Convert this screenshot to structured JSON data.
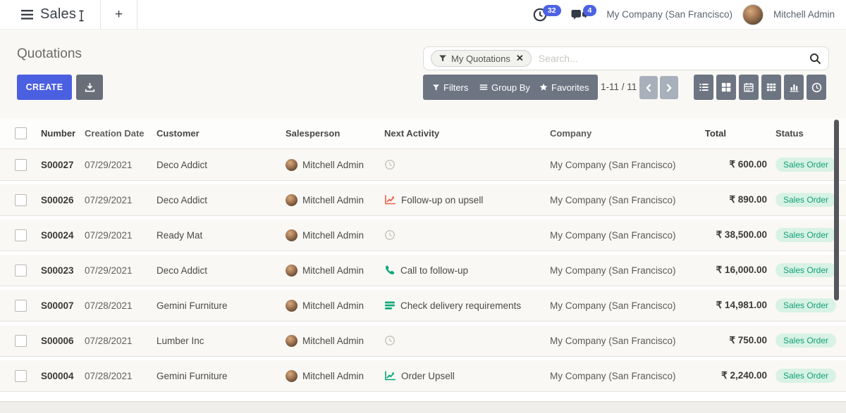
{
  "topbar": {
    "app_name": "Sales",
    "new_tab_label": "+",
    "activity_count": "32",
    "message_count": "4",
    "company": "My Company (San Francisco)",
    "user": "Mitchell Admin"
  },
  "controls": {
    "page_title": "Quotations",
    "create_label": "CREATE",
    "filter_chip": "My Quotations",
    "search_placeholder": "Search...",
    "filters_label": "Filters",
    "group_by_label": "Group By",
    "favorites_label": "Favorites",
    "pager": "1-11 / 11",
    "view_switcher": [
      "list",
      "kanban",
      "calendar",
      "pivot",
      "graph",
      "activity"
    ]
  },
  "table": {
    "columns": [
      "Number",
      "Creation Date",
      "Customer",
      "Salesperson",
      "Next Activity",
      "Company",
      "Total",
      "Status"
    ],
    "rows": [
      {
        "number": "S00027",
        "creation_date": "07/29/2021",
        "customer": "Deco Addict",
        "salesperson": "Mitchell Admin",
        "activity_icon": "clock-icon",
        "activity_label": "",
        "activity_color": "#c9c9c4",
        "company": "My Company (San Francisco)",
        "total": "₹ 600.00",
        "status": "Sales Order"
      },
      {
        "number": "S00026",
        "creation_date": "07/29/2021",
        "customer": "Deco Addict",
        "salesperson": "Mitchell Admin",
        "activity_icon": "chart-up-icon",
        "activity_label": "Follow-up on upsell",
        "activity_color": "#e8604a",
        "company": "My Company (San Francisco)",
        "total": "₹ 890.00",
        "status": "Sales Order"
      },
      {
        "number": "S00024",
        "creation_date": "07/29/2021",
        "customer": "Ready Mat",
        "salesperson": "Mitchell Admin",
        "activity_icon": "clock-icon",
        "activity_label": "",
        "activity_color": "#c9c9c4",
        "company": "My Company (San Francisco)",
        "total": "₹ 38,500.00",
        "status": "Sales Order"
      },
      {
        "number": "S00023",
        "creation_date": "07/29/2021",
        "customer": "Deco Addict",
        "salesperson": "Mitchell Admin",
        "activity_icon": "phone-icon",
        "activity_label": "Call to follow-up",
        "activity_color": "#00a878",
        "company": "My Company (San Francisco)",
        "total": "₹ 16,000.00",
        "status": "Sales Order"
      },
      {
        "number": "S00007",
        "creation_date": "07/28/2021",
        "customer": "Gemini Furniture",
        "salesperson": "Mitchell Admin",
        "activity_icon": "tasks-icon",
        "activity_label": "Check delivery requirements",
        "activity_color": "#00a878",
        "company": "My Company (San Francisco)",
        "total": "₹ 14,981.00",
        "status": "Sales Order"
      },
      {
        "number": "S00006",
        "creation_date": "07/28/2021",
        "customer": "Lumber Inc",
        "salesperson": "Mitchell Admin",
        "activity_icon": "clock-icon",
        "activity_label": "",
        "activity_color": "#c9c9c4",
        "company": "My Company (San Francisco)",
        "total": "₹ 750.00",
        "status": "Sales Order"
      },
      {
        "number": "S00004",
        "creation_date": "07/28/2021",
        "customer": "Gemini Furniture",
        "salesperson": "Mitchell Admin",
        "activity_icon": "chart-up-icon",
        "activity_label": "Order Upsell",
        "activity_color": "#00a878",
        "company": "My Company (San Francisco)",
        "total": "₹ 2,240.00",
        "status": "Sales Order"
      }
    ]
  },
  "colors": {
    "primary": "#4b5fe1",
    "toolbar_button": "#6e7582",
    "badge_bg": "#d8f2e5",
    "badge_text": "#12a077",
    "activity_green": "#00a878",
    "activity_red": "#e8604a"
  }
}
